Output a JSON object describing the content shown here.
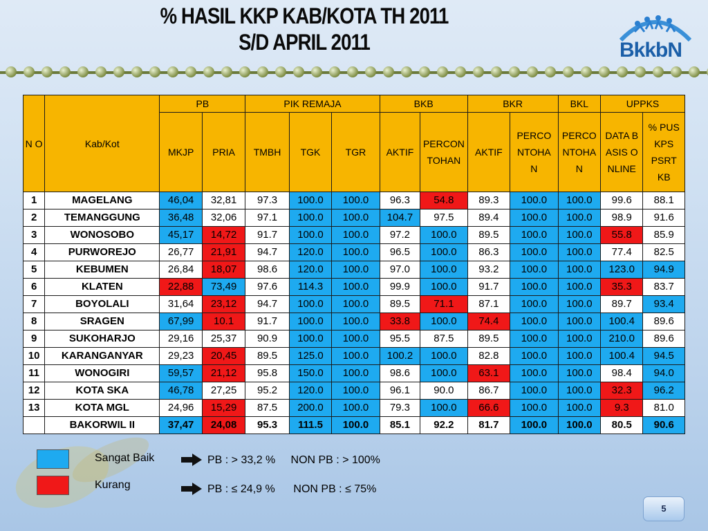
{
  "header": {
    "title_line1": "% HASIL KKP KAB/KOTA TH 2011",
    "title_line2": "S/D APRIL 2011",
    "logo_text": "BkkbN"
  },
  "table": {
    "head": {
      "no": "N O",
      "kab": "Kab/Kot",
      "groups": {
        "pb": "PB",
        "pik": "PIK REMAJA",
        "bkb": "BKB",
        "bkr": "BKR",
        "bkl": "BKL",
        "uppks": "UPPKS"
      },
      "sub": {
        "mkjp": "MKJP",
        "pria": "PRIA",
        "tmbh": "TMBH",
        "tgk": "TGK",
        "tgr": "TGR",
        "bkb_aktif": "AKTIF",
        "bkb_perc": "PERCONTOHAN",
        "bkr_aktif": "AKTIF",
        "bkr_perc": "PERCONTOHAN",
        "bkl_perc": "PERCONTOHAN",
        "data": "DATA BASIS ONLINE",
        "pus": "% PUS KPS PSRT KB"
      }
    },
    "rows": [
      {
        "no": "1",
        "name": "MAGELANG",
        "v": [
          "46,04",
          "32,81",
          "97.3",
          "100.0",
          "100.0",
          "96.3",
          "54.8",
          "89.3",
          "100.0",
          "100.0",
          "99.6",
          "88.1"
        ],
        "c": [
          "b",
          "",
          "",
          "b",
          "b",
          "",
          "r",
          "",
          "b",
          "b",
          "",
          ""
        ]
      },
      {
        "no": "2",
        "name": "TEMANGGUNG",
        "v": [
          "36,48",
          "32,06",
          "97.1",
          "100.0",
          "100.0",
          "104.7",
          "97.5",
          "89.4",
          "100.0",
          "100.0",
          "98.9",
          "91.6"
        ],
        "c": [
          "b",
          "",
          "",
          "b",
          "b",
          "b",
          "",
          "",
          "b",
          "b",
          "",
          ""
        ]
      },
      {
        "no": "3",
        "name": "WONOSOBO",
        "v": [
          "45,17",
          "14,72",
          "91.7",
          "100.0",
          "100.0",
          "97.2",
          "100.0",
          "89.5",
          "100.0",
          "100.0",
          "55.8",
          "85.9"
        ],
        "c": [
          "b",
          "r",
          "",
          "b",
          "b",
          "",
          "b",
          "",
          "b",
          "b",
          "r",
          ""
        ]
      },
      {
        "no": "4",
        "name": "PURWOREJO",
        "v": [
          "26,77",
          "21,91",
          "94.7",
          "120.0",
          "100.0",
          "96.5",
          "100.0",
          "86.3",
          "100.0",
          "100.0",
          "77.4",
          "82.5"
        ],
        "c": [
          "",
          "r",
          "",
          "b",
          "b",
          "",
          "b",
          "",
          "b",
          "b",
          "",
          ""
        ]
      },
      {
        "no": "5",
        "name": "KEBUMEN",
        "v": [
          "26,84",
          "18,07",
          "98.6",
          "120.0",
          "100.0",
          "97.0",
          "100.0",
          "93.2",
          "100.0",
          "100.0",
          "123.0",
          "94.9"
        ],
        "c": [
          "",
          "r",
          "",
          "b",
          "b",
          "",
          "b",
          "",
          "b",
          "b",
          "b",
          "b"
        ]
      },
      {
        "no": "6",
        "name": "KLATEN",
        "v": [
          "22,88",
          "73,49",
          "97.6",
          "114.3",
          "100.0",
          "99.9",
          "100.0",
          "91.7",
          "100.0",
          "100.0",
          "35.3",
          "83.7"
        ],
        "c": [
          "r",
          "b",
          "",
          "b",
          "b",
          "",
          "b",
          "",
          "b",
          "b",
          "r",
          ""
        ]
      },
      {
        "no": "7",
        "name": "BOYOLALI",
        "v": [
          "31,64",
          "23,12",
          "94.7",
          "100.0",
          "100.0",
          "89.5",
          "71.1",
          "87.1",
          "100.0",
          "100.0",
          "89.7",
          "93.4"
        ],
        "c": [
          "",
          "r",
          "",
          "b",
          "b",
          "",
          "r",
          "",
          "b",
          "b",
          "",
          "b"
        ]
      },
      {
        "no": "8",
        "name": "SRAGEN",
        "v": [
          "67,99",
          "10.1",
          "91.7",
          "100.0",
          "100.0",
          "33.8",
          "100.0",
          "74.4",
          "100.0",
          "100.0",
          "100.4",
          "89.6"
        ],
        "c": [
          "b",
          "r",
          "",
          "b",
          "b",
          "r",
          "b",
          "r",
          "b",
          "b",
          "b",
          ""
        ]
      },
      {
        "no": "9",
        "name": "SUKOHARJO",
        "v": [
          "29,16",
          "25,37",
          "90.9",
          "100.0",
          "100.0",
          "95.5",
          "87.5",
          "89.5",
          "100.0",
          "100.0",
          "210.0",
          "89.6"
        ],
        "c": [
          "",
          "",
          "",
          "b",
          "b",
          "",
          "",
          "",
          "b",
          "b",
          "b",
          ""
        ]
      },
      {
        "no": "10",
        "name": "KARANGANYAR",
        "v": [
          "29,23",
          "20,45",
          "89.5",
          "125.0",
          "100.0",
          "100.2",
          "100.0",
          "82.8",
          "100.0",
          "100.0",
          "100.4",
          "94.5"
        ],
        "c": [
          "",
          "r",
          "",
          "b",
          "b",
          "b",
          "b",
          "",
          "b",
          "b",
          "b",
          "b"
        ]
      },
      {
        "no": "11",
        "name": "WONOGIRI",
        "v": [
          "59,57",
          "21,12",
          "95.8",
          "150.0",
          "100.0",
          "98.6",
          "100.0",
          "63.1",
          "100.0",
          "100.0",
          "98.4",
          "94.0"
        ],
        "c": [
          "b",
          "r",
          "",
          "b",
          "b",
          "",
          "b",
          "r",
          "b",
          "b",
          "",
          "b"
        ]
      },
      {
        "no": "12",
        "name": "KOTA SKA",
        "v": [
          "46,78",
          "27,25",
          "95.2",
          "120.0",
          "100.0",
          "96.1",
          "90.0",
          "86.7",
          "100.0",
          "100.0",
          "32.3",
          "96.2"
        ],
        "c": [
          "b",
          "",
          "",
          "b",
          "b",
          "",
          "",
          "",
          "b",
          "b",
          "r",
          "b"
        ]
      },
      {
        "no": "13",
        "name": "KOTA MGL",
        "v": [
          "24,96",
          "15,29",
          "87.5",
          "200.0",
          "100.0",
          "79.3",
          "100.0",
          "66.6",
          "100.0",
          "100.0",
          "9.3",
          "81.0"
        ],
        "c": [
          "",
          "r",
          "",
          "b",
          "b",
          "",
          "b",
          "r",
          "b",
          "b",
          "r",
          ""
        ]
      },
      {
        "no": "",
        "name": "BAKORWIL II",
        "v": [
          "37,47",
          "24,08",
          "95.3",
          "111.5",
          "100.0",
          "85.1",
          "92.2",
          "81.7",
          "100.0",
          "100.0",
          "80.5",
          "90.6"
        ],
        "c": [
          "b",
          "r",
          "",
          "b",
          "b",
          "",
          "",
          "",
          "b",
          "b",
          "",
          "b"
        ]
      }
    ]
  },
  "legend": {
    "good": {
      "label": "Sangat Baik",
      "color": "#1eaaf0"
    },
    "bad": {
      "label": "Kurang",
      "color": "#f01818"
    },
    "crit_good": "PB : > 33,2 %     NON PB : > 100%",
    "crit_bad": "PB : ≤ 24,9 %      NON PB : ≤ 75%"
  },
  "page_number": "5"
}
